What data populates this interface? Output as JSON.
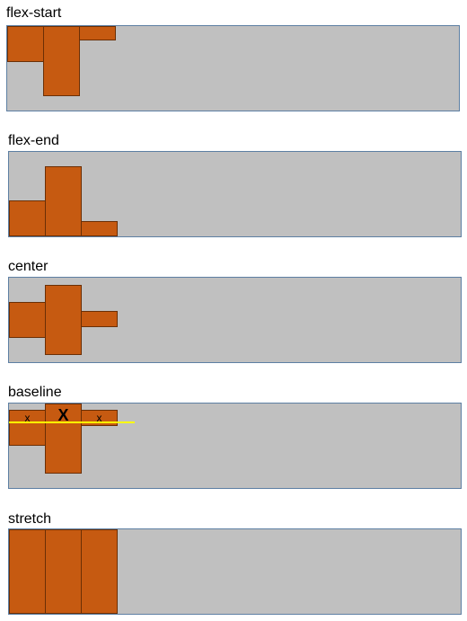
{
  "sections": [
    {
      "label": "flex-start"
    },
    {
      "label": "flex-end"
    },
    {
      "label": "center"
    },
    {
      "label": "baseline",
      "marks": [
        "x",
        "X",
        "x"
      ]
    },
    {
      "label": "stretch"
    }
  ],
  "colors": {
    "container_bg": "#c0c0c0",
    "container_border": "#5d7fa3",
    "box_fill": "#c65a11",
    "box_border": "#6b2f05",
    "baseline_line": "#ffff00"
  }
}
